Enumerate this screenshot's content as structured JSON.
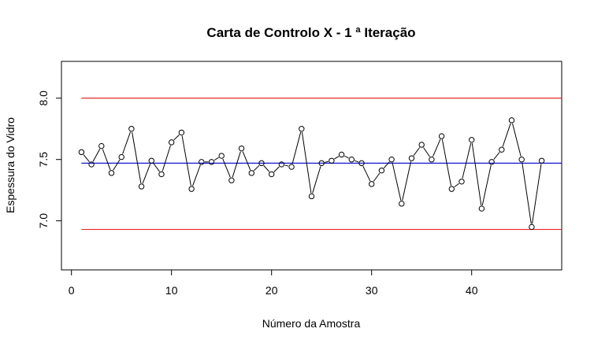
{
  "chart_data": {
    "type": "line",
    "title": "Carta de Controlo X -  1 ª Iteração",
    "xlabel": "Número da Amostra",
    "ylabel": "Espessura do Vidro",
    "xlim": [
      -1,
      49
    ],
    "ylim": [
      6.6,
      8.3
    ],
    "xticks": [
      0,
      10,
      20,
      30,
      40
    ],
    "yticks": [
      7.0,
      7.5,
      8.0
    ],
    "xtick_labels": [
      "0",
      "10",
      "20",
      "30",
      "40"
    ],
    "ytick_labels": [
      "7.0",
      "7.5",
      "8.0"
    ],
    "grid": false,
    "control_lines": [
      {
        "name": "UCL",
        "value": 8.0,
        "color": "#e8262b"
      },
      {
        "name": "CL",
        "value": 7.47,
        "color": "#1414d6"
      },
      {
        "name": "LCL",
        "value": 6.93,
        "color": "#e8262b"
      }
    ],
    "series": [
      {
        "marker": "open-circle",
        "color": "#000000",
        "x": [
          1,
          2,
          3,
          4,
          5,
          6,
          7,
          8,
          9,
          10,
          11,
          12,
          13,
          14,
          15,
          16,
          17,
          18,
          19,
          20,
          21,
          22,
          23,
          24,
          25,
          26,
          27,
          28,
          29,
          30,
          31,
          32,
          33,
          34,
          35,
          36,
          37,
          38,
          39,
          40,
          41,
          42,
          43,
          44,
          45,
          46,
          47
        ],
        "values": [
          7.56,
          7.46,
          7.61,
          7.39,
          7.52,
          7.75,
          7.28,
          7.49,
          7.38,
          7.64,
          7.72,
          7.26,
          7.48,
          7.48,
          7.53,
          7.33,
          7.59,
          7.39,
          7.47,
          7.38,
          7.46,
          7.44,
          7.75,
          7.2,
          7.47,
          7.49,
          7.54,
          7.5,
          7.47,
          7.3,
          7.41,
          7.5,
          7.14,
          7.51,
          7.62,
          7.5,
          7.69,
          7.26,
          7.32,
          7.66,
          7.1,
          7.48,
          7.58,
          7.82,
          7.5,
          6.95,
          7.49
        ]
      }
    ]
  }
}
